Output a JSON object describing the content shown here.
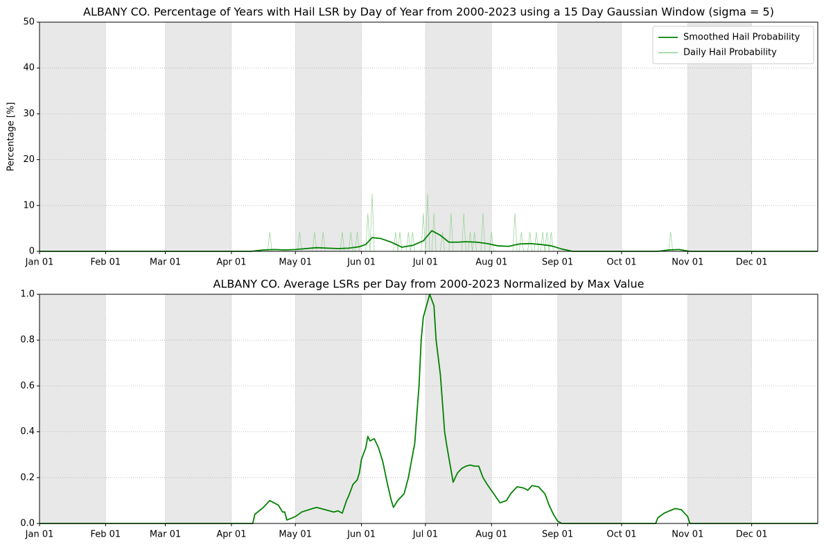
{
  "chart_data": [
    {
      "type": "line",
      "title": "ALBANY CO. Percentage of Years with Hail LSR by Day of Year from 2000-2023 using a 15 Day Gaussian Window (sigma = 5)",
      "ylabel": "Percentage [%]",
      "xlim": [
        0,
        365
      ],
      "ylim": [
        0,
        50
      ],
      "xticks": [
        {
          "value": 0,
          "label": "Jan 01"
        },
        {
          "value": 31,
          "label": "Feb 01"
        },
        {
          "value": 59,
          "label": "Mar 01"
        },
        {
          "value": 90,
          "label": "Apr 01"
        },
        {
          "value": 120,
          "label": "May 01"
        },
        {
          "value": 151,
          "label": "Jun 01"
        },
        {
          "value": 181,
          "label": "Jul 01"
        },
        {
          "value": 212,
          "label": "Aug 01"
        },
        {
          "value": 243,
          "label": "Sep 01"
        },
        {
          "value": 273,
          "label": "Oct 01"
        },
        {
          "value": 304,
          "label": "Nov 01"
        },
        {
          "value": 334,
          "label": "Dec 01"
        }
      ],
      "yticks": [
        0,
        10,
        20,
        30,
        40,
        50
      ],
      "grid": true,
      "legend": "upper right",
      "series": [
        {
          "name": "Smoothed Hail Probability",
          "color": "#008000",
          "width": 1.8,
          "x": [
            0,
            99,
            105,
            110,
            115,
            120,
            125,
            130,
            135,
            140,
            145,
            150,
            153,
            156,
            160,
            165,
            170,
            175,
            180,
            184,
            188,
            192,
            196,
            200,
            205,
            210,
            215,
            220,
            225,
            230,
            235,
            240,
            245,
            250,
            290,
            295,
            300,
            305,
            365
          ],
          "values": [
            0,
            0,
            0.3,
            0.4,
            0.3,
            0.4,
            0.6,
            0.8,
            0.7,
            0.6,
            0.7,
            1.0,
            1.5,
            3.0,
            2.8,
            2.0,
            0.9,
            1.3,
            2.3,
            4.5,
            3.5,
            2.0,
            2.0,
            2.1,
            2.0,
            1.7,
            1.2,
            1.1,
            1.6,
            1.7,
            1.5,
            1.2,
            0.5,
            0,
            0,
            0.3,
            0.4,
            0,
            0
          ]
        },
        {
          "name": "Daily Hail Probability",
          "color": "#8fd18f",
          "width": 0.7,
          "x": [
            0,
            107,
            108,
            109,
            121,
            122,
            123,
            128,
            129,
            130,
            132,
            133,
            134,
            141,
            142,
            143,
            145,
            146,
            147,
            148,
            149,
            150,
            153,
            154,
            155,
            156,
            157,
            166,
            167,
            168,
            169,
            170,
            172,
            173,
            174,
            175,
            176,
            179,
            180,
            181,
            182,
            183,
            184,
            185,
            186,
            188,
            189,
            190,
            192,
            193,
            194,
            198,
            199,
            200,
            201,
            202,
            203,
            204,
            205,
            207,
            208,
            209,
            211,
            212,
            213,
            222,
            223,
            224,
            225,
            226,
            227,
            229,
            230,
            231,
            232,
            233,
            234,
            235,
            236,
            237,
            238,
            239,
            240,
            241,
            295,
            296,
            297,
            365
          ],
          "values": [
            0,
            0,
            4.2,
            0,
            0,
            4.2,
            0,
            0,
            4.2,
            0,
            0,
            4.2,
            0,
            0,
            4.2,
            0,
            0,
            4.2,
            0,
            0,
            4.2,
            0,
            0,
            8.3,
            0,
            12.5,
            0,
            0,
            4.2,
            0,
            4.2,
            0,
            0,
            4.2,
            0,
            4.2,
            0,
            0,
            8.3,
            0,
            12.5,
            0,
            0,
            8.3,
            0,
            0,
            4.2,
            0,
            0,
            8.3,
            0,
            0,
            8.3,
            0,
            0,
            4.2,
            0,
            4.2,
            0,
            0,
            8.3,
            0,
            0,
            4.2,
            0,
            0,
            8.3,
            0,
            0,
            4.2,
            0,
            0,
            4.2,
            0,
            0,
            4.2,
            0,
            0,
            4.2,
            0,
            4.2,
            0,
            4.2,
            0,
            0,
            4.2,
            0,
            0
          ]
        }
      ]
    },
    {
      "type": "line",
      "title": "ALBANY CO. Average LSRs per Day from 2000-2023 Normalized by Max Value",
      "xlim": [
        0,
        365
      ],
      "ylim": [
        0,
        1
      ],
      "xticks": [
        {
          "value": 0,
          "label": "Jan 01"
        },
        {
          "value": 31,
          "label": "Feb 01"
        },
        {
          "value": 59,
          "label": "Mar 01"
        },
        {
          "value": 90,
          "label": "Apr 01"
        },
        {
          "value": 120,
          "label": "May 01"
        },
        {
          "value": 151,
          "label": "Jun 01"
        },
        {
          "value": 181,
          "label": "Jul 01"
        },
        {
          "value": 212,
          "label": "Aug 01"
        },
        {
          "value": 243,
          "label": "Sep 01"
        },
        {
          "value": 273,
          "label": "Oct 01"
        },
        {
          "value": 304,
          "label": "Nov 01"
        },
        {
          "value": 334,
          "label": "Dec 01"
        }
      ],
      "yticks": [
        {
          "value": 0,
          "label": "0.0"
        },
        {
          "value": 0.2,
          "label": "0.2"
        },
        {
          "value": 0.4,
          "label": "0.4"
        },
        {
          "value": 0.6,
          "label": "0.6"
        },
        {
          "value": 0.8,
          "label": "0.8"
        },
        {
          "value": 1,
          "label": "1.0"
        }
      ],
      "grid": true,
      "series": [
        {
          "color": "#008000",
          "width": 1.8,
          "x": [
            0,
            100,
            101,
            105,
            108,
            112,
            114,
            115,
            116,
            120,
            123,
            128,
            130,
            134,
            138,
            140,
            142,
            144,
            145,
            147,
            149,
            150,
            151,
            153,
            154,
            155,
            157,
            159,
            161,
            163,
            165,
            166,
            168,
            171,
            173,
            175,
            176,
            177,
            178,
            179,
            180,
            183,
            185,
            186,
            188,
            190,
            191,
            194,
            196,
            198,
            200,
            202,
            204,
            206,
            208,
            210,
            213,
            216,
            219,
            221,
            224,
            227,
            229,
            231,
            234,
            237,
            239,
            241,
            243,
            245,
            289,
            290,
            293,
            298,
            301,
            304,
            305,
            365
          ],
          "values": [
            0,
            0,
            0.04,
            0.07,
            0.1,
            0.08,
            0.05,
            0.05,
            0.015,
            0.03,
            0.05,
            0.065,
            0.07,
            0.06,
            0.05,
            0.055,
            0.045,
            0.1,
            0.12,
            0.17,
            0.19,
            0.22,
            0.28,
            0.33,
            0.38,
            0.36,
            0.37,
            0.33,
            0.27,
            0.18,
            0.1,
            0.07,
            0.1,
            0.13,
            0.2,
            0.3,
            0.35,
            0.48,
            0.6,
            0.8,
            0.9,
            1.0,
            0.95,
            0.8,
            0.65,
            0.4,
            0.34,
            0.18,
            0.22,
            0.24,
            0.25,
            0.255,
            0.25,
            0.25,
            0.2,
            0.17,
            0.13,
            0.09,
            0.1,
            0.13,
            0.16,
            0.155,
            0.145,
            0.165,
            0.16,
            0.13,
            0.08,
            0.04,
            0.01,
            0,
            0,
            0.025,
            0.045,
            0.065,
            0.06,
            0.03,
            0,
            0
          ]
        }
      ]
    }
  ]
}
